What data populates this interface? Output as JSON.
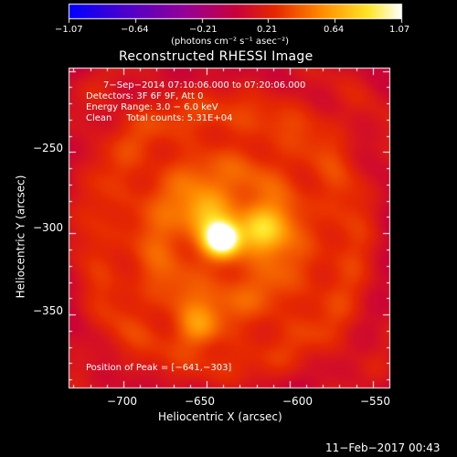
{
  "colorbar": {
    "ticks": [
      "−1.07",
      "−0.64",
      "−0.21",
      "0.21",
      "0.64",
      "1.07"
    ],
    "tick_values": [
      -1.07,
      -0.64,
      -0.21,
      0.21,
      0.64,
      1.07
    ],
    "range": [
      -1.07,
      1.07
    ],
    "units": "(photons cm⁻² s⁻¹ asec⁻²)",
    "colormap": "rainbow/heat (blue → purple → red → orange → yellow → white)"
  },
  "chart_data": {
    "type": "heatmap",
    "title": "Reconstructed RHESSI Image",
    "xlabel": "Heliocentric X (arcsec)",
    "ylabel": "Heliocentric Y (arcsec)",
    "xlim": [
      -733,
      -540
    ],
    "ylim": [
      -395,
      -198
    ],
    "xticks": [
      -700,
      -650,
      -600,
      -550
    ],
    "yticks": [
      -250,
      -300,
      -350
    ],
    "xtick_labels": [
      "−700",
      "−650",
      "−600",
      "−550"
    ],
    "ytick_labels": [
      "−250",
      "−300",
      "−350"
    ],
    "annotations": [
      "7−Sep−2014 07:10:06.000 to 07:20:06.000",
      "Detectors: 3F 6F 9F, Att 0",
      "Energy Range: 3.0 − 6.0 keV",
      "Clean     Total counts: 5.31E+04"
    ],
    "peak_label": "Position of Peak = [−641,−303]",
    "peak": {
      "x": -641,
      "y": -303
    },
    "sources": [
      {
        "x": -641,
        "y": -303,
        "relative_intensity": 1.0
      },
      {
        "x": -618,
        "y": -298,
        "relative_intensity": 0.55
      },
      {
        "x": -651,
        "y": -287,
        "relative_intensity": 0.45
      },
      {
        "x": -655,
        "y": -358,
        "relative_intensity": 0.35
      }
    ],
    "grid": false
  },
  "timestamp": "11−Feb−2017 00:43"
}
